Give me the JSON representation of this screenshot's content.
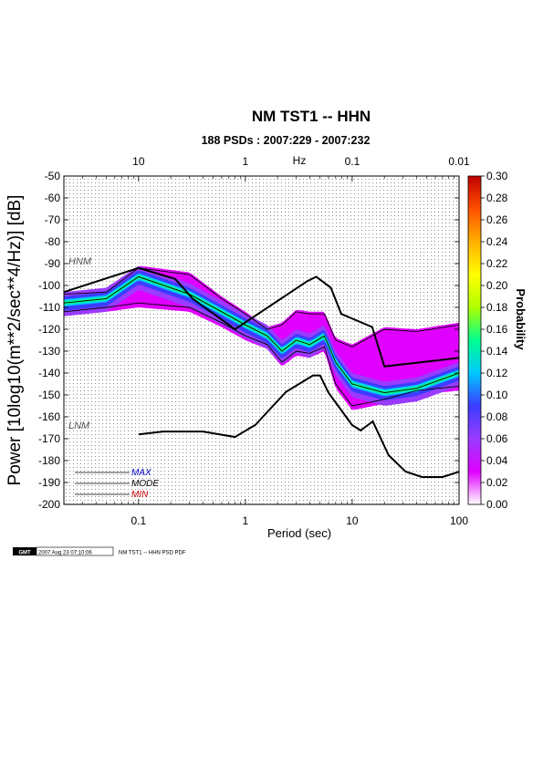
{
  "chart_data": {
    "type": "heatmap",
    "title": "NM TST1 -- HHN",
    "subtitle": "188 PSDs : 2007:229 - 2007:232",
    "xlabel": "Period (sec)",
    "ylabel": "Power [10log10(m**2/sec**4/Hz)] [dB]",
    "top_axis_label": "Hz",
    "x_scale": "log",
    "xlim": [
      0.02,
      100
    ],
    "ylim": [
      -200,
      -50
    ],
    "grid": true,
    "x_ticks": [
      "0.1",
      "1",
      "10",
      "100"
    ],
    "x_tick_values": [
      0.1,
      1,
      10,
      100
    ],
    "top_ticks": [
      "10",
      "1",
      "0.1",
      "0.01"
    ],
    "top_tick_values": [
      0.1,
      1,
      10,
      100
    ],
    "y_ticks": [
      "-50",
      "-60",
      "-70",
      "-80",
      "-90",
      "-100",
      "-110",
      "-120",
      "-130",
      "-140",
      "-150",
      "-160",
      "-170",
      "-180",
      "-190",
      "-200"
    ],
    "colorbar": {
      "label": "Probability",
      "ticks": [
        "0.30",
        "0.28",
        "0.26",
        "0.24",
        "0.22",
        "0.20",
        "0.18",
        "0.16",
        "0.14",
        "0.12",
        "0.10",
        "0.08",
        "0.06",
        "0.04",
        "0.02",
        "0.00"
      ],
      "range": [
        0,
        0.3
      ],
      "colors": [
        "#ffffff",
        "#e000ff",
        "#9a3cff",
        "#3c3cff",
        "#00c8ff",
        "#00ff90",
        "#b0ff00",
        "#ffff00",
        "#ffb000",
        "#ff5000",
        "#c00000"
      ]
    },
    "reference_curves": [
      {
        "name": "HNM",
        "x": [
          0.02,
          0.1,
          0.22,
          0.32,
          0.8,
          3.8,
          4.6,
          6.3,
          7.9,
          15.4,
          20,
          354
        ],
        "y": [
          -103,
          -92,
          -97,
          -106,
          -120,
          -98,
          -96,
          -101,
          -113,
          -119,
          -137,
          -130
        ]
      },
      {
        "name": "LNM",
        "x": [
          0.1,
          0.17,
          0.4,
          0.8,
          1.24,
          2.4,
          4.3,
          5,
          6,
          10,
          12,
          15.6,
          21.9,
          31.6,
          45,
          70,
          101
        ],
        "y": [
          -168,
          -166.7,
          -166.7,
          -169.2,
          -163.7,
          -148.6,
          -141.1,
          -141.1,
          -149,
          -163.8,
          -166.2,
          -162.1,
          -177.5,
          -185,
          -187.5,
          -187.5,
          -185
        ]
      }
    ],
    "statistics": [
      {
        "name": "MAX",
        "x": [
          0.02,
          0.05,
          0.1,
          0.3,
          0.6,
          1,
          1.6,
          2.2,
          3,
          4,
          5.5,
          7,
          10,
          20,
          40,
          100
        ],
        "y": [
          -104,
          -103,
          -92,
          -95,
          -106,
          -113,
          -120,
          -118,
          -112,
          -113,
          -113,
          -125,
          -128,
          -120,
          -121,
          -118
        ]
      },
      {
        "name": "MODE",
        "x": [
          0.02,
          0.05,
          0.1,
          0.3,
          0.6,
          1,
          1.6,
          2.2,
          3,
          4,
          5.5,
          7,
          10,
          20,
          40,
          100
        ],
        "y": [
          -108,
          -106,
          -96,
          -104,
          -112,
          -118,
          -123,
          -130,
          -125,
          -127,
          -123,
          -135,
          -145,
          -149,
          -147,
          -140
        ]
      },
      {
        "name": "MIN",
        "x": [
          0.02,
          0.05,
          0.1,
          0.3,
          0.6,
          1,
          1.6,
          2.2,
          3,
          4,
          5.5,
          7,
          10,
          20,
          40,
          100
        ],
        "y": [
          -112,
          -110,
          -108,
          -110,
          -117,
          -123,
          -127,
          -135,
          -130,
          -131,
          -128,
          -145,
          -155,
          -152,
          -148,
          -146
        ]
      }
    ],
    "legend": [
      "MAX",
      "MODE",
      "MIN"
    ],
    "legend_colors": [
      "#0000cc",
      "#000000",
      "#cc0000"
    ]
  },
  "footer": {
    "logo": "GMT",
    "timestamp": "2007 Aug 23 07:10:06",
    "caption": "NM TST1 -- HHN PSD PDF"
  }
}
